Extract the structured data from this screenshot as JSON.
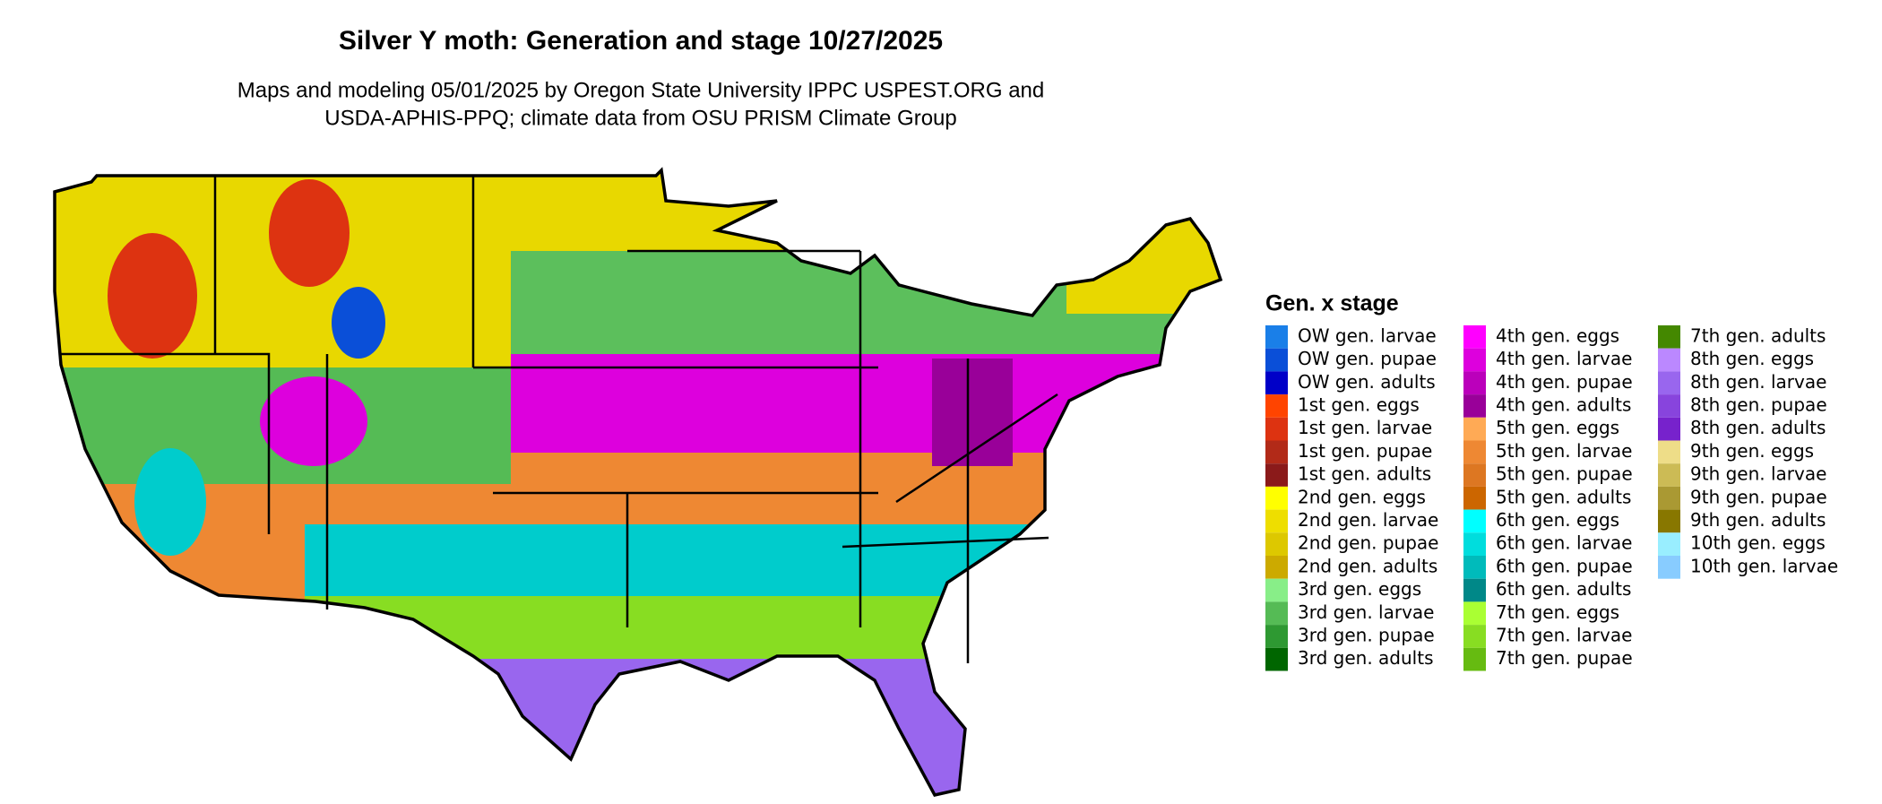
{
  "title": "Silver Y moth: Generation and stage 10/27/2025",
  "subtitle": [
    "Maps and modeling 05/01/2025 by Oregon State University IPPC USPEST.ORG and",
    "USDA-APHIS-PPQ; climate data from OSU PRISM Climate Group"
  ],
  "legend": {
    "title": "Gen. x stage",
    "items": [
      {
        "label": "OW gen. larvae",
        "color": "#1a7fe8"
      },
      {
        "label": "OW gen. pupae",
        "color": "#0a4fd8"
      },
      {
        "label": "OW gen. adults",
        "color": "#0000c8"
      },
      {
        "label": "1st gen. eggs",
        "color": "#ff4400"
      },
      {
        "label": "1st gen. larvae",
        "color": "#dd3311"
      },
      {
        "label": "1st gen. pupae",
        "color": "#b22a18"
      },
      {
        "label": "1st gen. adults",
        "color": "#8b1a1a"
      },
      {
        "label": "2nd gen. eggs",
        "color": "#ffff00"
      },
      {
        "label": "2nd gen. larvae",
        "color": "#eede00"
      },
      {
        "label": "2nd gen. pupae",
        "color": "#ddc800"
      },
      {
        "label": "2nd gen. adults",
        "color": "#ccaa00"
      },
      {
        "label": "3rd gen. eggs",
        "color": "#88ee88"
      },
      {
        "label": "3rd gen. larvae",
        "color": "#55bb55"
      },
      {
        "label": "3rd gen. pupae",
        "color": "#2e9932"
      },
      {
        "label": "3rd gen. adults",
        "color": "#006600"
      },
      {
        "label": "4th gen. eggs",
        "color": "#ff00ff"
      },
      {
        "label": "4th gen. larvae",
        "color": "#dd00dd"
      },
      {
        "label": "4th gen. pupae",
        "color": "#bb00bb"
      },
      {
        "label": "4th gen. adults",
        "color": "#990099"
      },
      {
        "label": "5th gen. eggs",
        "color": "#ffaa55"
      },
      {
        "label": "5th gen. larvae",
        "color": "#ee8833"
      },
      {
        "label": "5th gen. pupae",
        "color": "#dd7722"
      },
      {
        "label": "5th gen. adults",
        "color": "#cc6600"
      },
      {
        "label": "6th gen. eggs",
        "color": "#00ffff"
      },
      {
        "label": "6th gen. larvae",
        "color": "#00dddd"
      },
      {
        "label": "6th gen. pupae",
        "color": "#00bbbb"
      },
      {
        "label": "6th gen. adults",
        "color": "#008888"
      },
      {
        "label": "7th gen. eggs",
        "color": "#aaff33"
      },
      {
        "label": "7th gen. larvae",
        "color": "#88dd22"
      },
      {
        "label": "7th gen. pupae",
        "color": "#66bb11"
      },
      {
        "label": "7th gen. adults",
        "color": "#448800"
      },
      {
        "label": "8th gen. eggs",
        "color": "#bb88ff"
      },
      {
        "label": "8th gen. larvae",
        "color": "#9966ee"
      },
      {
        "label": "8th gen. pupae",
        "color": "#8844dd"
      },
      {
        "label": "8th gen. adults",
        "color": "#7722cc"
      },
      {
        "label": "9th gen. eggs",
        "color": "#eedd88"
      },
      {
        "label": "9th gen. larvae",
        "color": "#ccbb55"
      },
      {
        "label": "9th gen. pupae",
        "color": "#aa9933"
      },
      {
        "label": "9th gen. adults",
        "color": "#887700"
      },
      {
        "label": "10th gen. eggs",
        "color": "#99eeff"
      },
      {
        "label": "10th gen. larvae",
        "color": "#88ccff"
      }
    ]
  }
}
